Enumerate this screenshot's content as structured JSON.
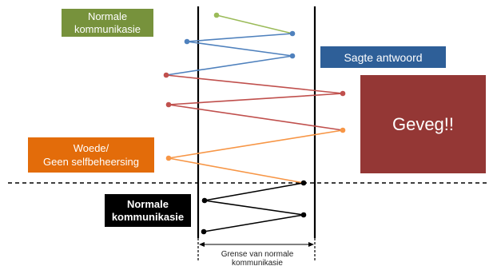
{
  "labels": {
    "normal_top": [
      "Normale",
      "kommunikasie"
    ],
    "soft_answer": "Sagte antwoord",
    "fight": "Geveg!!",
    "rage": [
      "Woede/",
      "Geen selfbeheersing"
    ],
    "normal_bottom": [
      "Normale",
      "kommunikasie"
    ],
    "boundary": [
      "Grense van normale",
      "kommunikasie"
    ]
  },
  "colors": {
    "normal_top": "#77923c",
    "green_line": "#9bbb59",
    "soft_answer": "#2e5f98",
    "blue_line": "#4f81bd",
    "fight": "#943735",
    "red_line": "#c0504d",
    "rage": "#e36c0a",
    "orange_line": "#f79646",
    "normal_bottom": "#000000"
  }
}
